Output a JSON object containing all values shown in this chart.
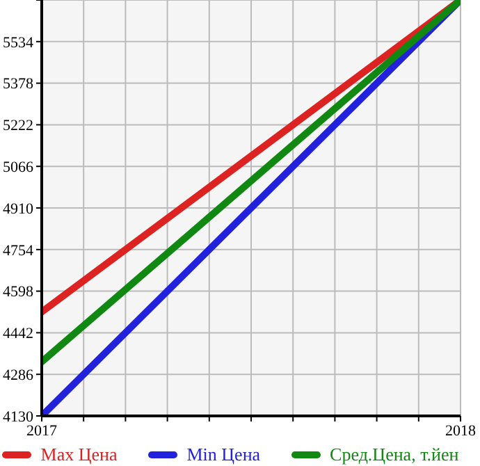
{
  "chart_data": {
    "type": "line",
    "x": [
      2017,
      2018
    ],
    "xlim": [
      2017,
      2018
    ],
    "xticks": [
      2017,
      {
        "value": 2017.1,
        "label": null
      },
      {
        "value": 2017.2,
        "label": null
      },
      {
        "value": 2017.3,
        "label": null
      },
      {
        "value": 2017.4,
        "label": null
      },
      {
        "value": 2017.5,
        "label": null
      },
      {
        "value": 2017.6,
        "label": null
      },
      {
        "value": 2017.7,
        "label": null
      },
      {
        "value": 2017.8,
        "label": null
      },
      {
        "value": 2017.9,
        "label": null
      },
      2018
    ],
    "ylim": [
      4130,
      5690
    ],
    "yticks": [
      4130,
      4286,
      4442,
      4598,
      4754,
      4910,
      5066,
      5222,
      5378,
      5534,
      {
        "value": 5690,
        "label": null
      }
    ],
    "series": [
      {
        "name": "Max Цена",
        "color": "#dd2222",
        "values": [
          4520,
          5690
        ]
      },
      {
        "name": "Min Цена",
        "color": "#2222dd",
        "values": [
          4130,
          5690
        ]
      },
      {
        "name": "Сред.Цена, т.йен",
        "color": "#118811",
        "values": [
          4333,
          5690
        ]
      }
    ],
    "grid": true,
    "legend": "bottom",
    "marker": "none",
    "line_style": "solid"
  }
}
